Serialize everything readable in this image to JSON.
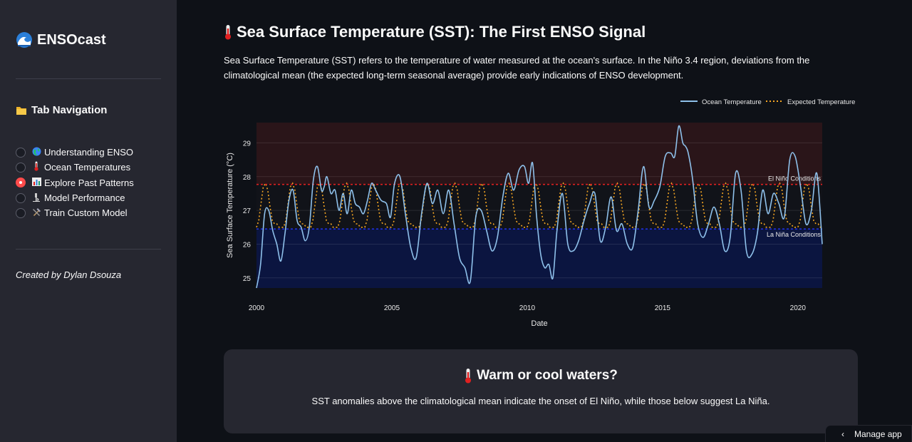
{
  "sidebar": {
    "brand": "ENSOcast",
    "nav_title": "Tab Navigation",
    "items": [
      {
        "label": "Understanding ENSO",
        "icon": "globe-icon",
        "selected": false
      },
      {
        "label": "Ocean Temperatures",
        "icon": "thermometer-icon",
        "selected": false
      },
      {
        "label": "Explore Past Patterns",
        "icon": "bar-chart-icon",
        "selected": true
      },
      {
        "label": "Model Performance",
        "icon": "microscope-icon",
        "selected": false
      },
      {
        "label": "Train Custom Model",
        "icon": "tools-icon",
        "selected": false
      }
    ],
    "credit": "Created by Dylan Dsouza"
  },
  "main": {
    "title": "Sea Surface Temperature (SST): The First ENSO Signal",
    "intro": "Sea Surface Temperature (SST) refers to the temperature of water measured at the ocean's surface. In the Niño 3.4 region, deviations from the climatological mean (the expected long-term seasonal average) provide early indications of ENSO development."
  },
  "card": {
    "title": "Warm or cool waters?",
    "text": "SST anomalies above the climatological mean indicate the onset of El Niño, while those below suggest La Niña."
  },
  "manage_app": "Manage app",
  "colors": {
    "ocean": "#8ec0ea",
    "expected": "#f5a623",
    "el_nino_line": "#e02020",
    "la_nina_line": "#1f2fd8",
    "el_nino_band": "#2a1519",
    "la_nina_band": "#0b1540",
    "accent": "#ff4b4b"
  },
  "chart_data": {
    "type": "line",
    "xlabel": "Date",
    "ylabel": "Sea Surface Temperature (°C)",
    "xlim": [
      2000.0,
      2020.9
    ],
    "ylim": [
      24.7,
      29.6
    ],
    "x_ticks": [
      2000,
      2005,
      2010,
      2015,
      2020
    ],
    "y_ticks": [
      25,
      26,
      27,
      28,
      29
    ],
    "legend": [
      "Ocean Temperature",
      "Expected Temperature"
    ],
    "legend_position": "top-right",
    "thresholds": [
      {
        "name": "El Niño Conditions",
        "value": 27.77
      },
      {
        "name": "La Niña Conditions",
        "value": 26.45
      }
    ],
    "series": [
      {
        "name": "Ocean Temperature",
        "x": [
          2000.0,
          2000.15,
          2000.3,
          2000.45,
          2000.6,
          2000.75,
          2000.9,
          2001.05,
          2001.2,
          2001.35,
          2001.5,
          2001.65,
          2001.8,
          2001.95,
          2002.1,
          2002.25,
          2002.4,
          2002.5,
          2002.6,
          2002.75,
          2002.9,
          2003.05,
          2003.2,
          2003.35,
          2003.5,
          2003.65,
          2003.8,
          2003.95,
          2004.1,
          2004.25,
          2004.4,
          2004.6,
          2004.8,
          2004.95,
          2005.1,
          2005.3,
          2005.5,
          2005.7,
          2005.9,
          2006.1,
          2006.3,
          2006.5,
          2006.7,
          2006.9,
          2007.1,
          2007.3,
          2007.5,
          2007.7,
          2007.9,
          2008.1,
          2008.3,
          2008.5,
          2008.7,
          2008.9,
          2009.1,
          2009.3,
          2009.5,
          2009.7,
          2009.9,
          2010.05,
          2010.2,
          2010.35,
          2010.5,
          2010.65,
          2010.8,
          2010.95,
          2011.1,
          2011.3,
          2011.5,
          2011.7,
          2011.9,
          2012.1,
          2012.3,
          2012.5,
          2012.7,
          2012.9,
          2013.1,
          2013.3,
          2013.5,
          2013.7,
          2013.9,
          2014.1,
          2014.3,
          2014.5,
          2014.7,
          2014.9,
          2015.1,
          2015.3,
          2015.45,
          2015.6,
          2015.75,
          2015.85,
          2015.95,
          2016.1,
          2016.3,
          2016.5,
          2016.7,
          2016.9,
          2017.1,
          2017.3,
          2017.5,
          2017.7,
          2017.9,
          2018.1,
          2018.3,
          2018.5,
          2018.7,
          2018.9,
          2019.1,
          2019.3,
          2019.5,
          2019.7,
          2019.9,
          2020.1,
          2020.3,
          2020.5,
          2020.7,
          2020.9
        ],
        "values": [
          24.7,
          25.4,
          26.9,
          27.0,
          26.4,
          26.0,
          25.5,
          26.3,
          27.3,
          27.6,
          26.7,
          26.5,
          26.1,
          26.5,
          27.9,
          28.3,
          27.6,
          27.7,
          28.0,
          27.5,
          27.6,
          27.0,
          27.5,
          26.9,
          27.6,
          27.2,
          27.1,
          26.9,
          27.3,
          27.8,
          27.6,
          27.3,
          27.2,
          26.8,
          27.8,
          28.0,
          26.9,
          25.9,
          25.6,
          26.9,
          27.8,
          27.2,
          27.6,
          26.9,
          27.6,
          26.6,
          25.6,
          25.3,
          24.9,
          26.8,
          27.0,
          26.4,
          25.8,
          26.2,
          27.4,
          28.1,
          27.6,
          28.2,
          28.3,
          27.8,
          28.4,
          26.8,
          25.7,
          25.3,
          25.4,
          25.0,
          26.4,
          27.5,
          26.0,
          25.8,
          26.1,
          26.7,
          27.2,
          27.5,
          26.1,
          26.5,
          27.4,
          26.4,
          26.6,
          26.0,
          25.9,
          27.0,
          28.3,
          27.1,
          27.3,
          27.7,
          28.6,
          28.7,
          28.6,
          29.5,
          29.0,
          28.9,
          28.7,
          28.0,
          26.6,
          26.2,
          26.6,
          27.1,
          26.6,
          25.8,
          26.2,
          28.1,
          27.6,
          25.8,
          25.7,
          26.3,
          27.6,
          26.9,
          27.5,
          27.2,
          26.8,
          28.5,
          28.6,
          27.7,
          26.6,
          27.0,
          28.1,
          26.0
        ]
      },
      {
        "name": "Expected Temperature",
        "annual_cycle": {
          "months": [
            1,
            2,
            3,
            4,
            5,
            6,
            7,
            8,
            9,
            10,
            11,
            12
          ],
          "values": [
            26.5,
            26.7,
            27.2,
            27.7,
            27.8,
            27.6,
            27.1,
            26.7,
            26.6,
            26.6,
            26.5,
            26.5
          ]
        },
        "range": [
          2000.0,
          2020.9
        ]
      }
    ]
  }
}
